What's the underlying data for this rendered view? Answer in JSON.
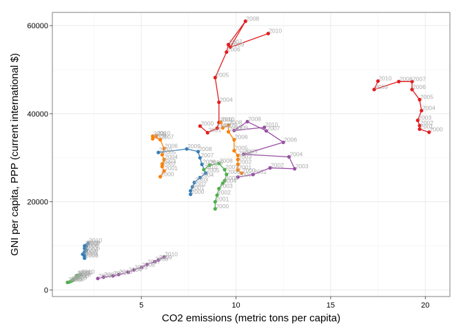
{
  "chart_data": {
    "type": "line",
    "xlabel": "CO2 emissions (metric tons per capita)",
    "ylabel": "GNI per capita, PPP (current international $)",
    "xlim": [
      0.3,
      21.3
    ],
    "ylim": [
      -1500,
      63000
    ],
    "xticks": [
      5,
      10,
      15,
      20
    ],
    "yticks": [
      0,
      20000,
      40000,
      60000
    ],
    "xtick_labels": [
      "5",
      "10",
      "15",
      "20"
    ],
    "ytick_labels": [
      "0",
      "20000",
      "40000",
      "60000"
    ],
    "grid": true,
    "legend": "none",
    "series": [
      {
        "color": "#e41a1c",
        "points": [
          {
            "year": "2000",
            "x": 20.2,
            "y": 35800
          },
          {
            "year": "2001",
            "x": 19.7,
            "y": 36500
          },
          {
            "year": "2002",
            "x": 19.7,
            "y": 37300
          },
          {
            "year": "2003",
            "x": 19.6,
            "y": 38500
          },
          {
            "year": "2004",
            "x": 19.8,
            "y": 40700
          },
          {
            "year": "2005",
            "x": 19.7,
            "y": 43200
          },
          {
            "year": "2006",
            "x": 19.3,
            "y": 45500
          },
          {
            "year": "2007",
            "x": 19.3,
            "y": 47300
          },
          {
            "year": "2008",
            "x": 18.6,
            "y": 47300
          },
          {
            "year": "2009",
            "x": 17.3,
            "y": 45500
          },
          {
            "year": "2010",
            "x": 17.5,
            "y": 47400
          }
        ]
      },
      {
        "color": "#e41a1c",
        "points": [
          {
            "year": "2000",
            "x": 8.1,
            "y": 37200
          },
          {
            "year": "2001",
            "x": 8.5,
            "y": 35700
          },
          {
            "year": "2002",
            "x": 9.0,
            "y": 36700
          },
          {
            "year": "2003",
            "x": 9.1,
            "y": 38000
          },
          {
            "year": "2004",
            "x": 9.1,
            "y": 42600
          },
          {
            "year": "2005",
            "x": 8.9,
            "y": 48200
          },
          {
            "year": "2006",
            "x": 9.5,
            "y": 54000
          },
          {
            "year": "2007",
            "x": 9.6,
            "y": 55700
          },
          {
            "year": "2008",
            "x": 10.5,
            "y": 61000
          },
          {
            "year": "2009",
            "x": 9.7,
            "y": 55100
          },
          {
            "year": "2010",
            "x": 11.7,
            "y": 58200
          }
        ]
      },
      {
        "color": "#984ea3",
        "points": [
          {
            "year": "2000",
            "x": 10.1,
            "y": 25600
          },
          {
            "year": "2001",
            "x": 10.9,
            "y": 26200
          },
          {
            "year": "2002",
            "x": 11.8,
            "y": 27700
          },
          {
            "year": "2003",
            "x": 13.1,
            "y": 27500
          },
          {
            "year": "2004",
            "x": 12.8,
            "y": 30200
          },
          {
            "year": "2005",
            "x": 10.4,
            "y": 30800
          },
          {
            "year": "2006",
            "x": 12.5,
            "y": 33500
          },
          {
            "year": "2007",
            "x": 11.6,
            "y": 36100
          },
          {
            "year": "2008",
            "x": 10.6,
            "y": 38200
          },
          {
            "year": "2009",
            "x": 9.9,
            "y": 36200
          },
          {
            "year": "2010",
            "x": 11.5,
            "y": 36900
          }
        ]
      },
      {
        "color": "#ff7f00",
        "points": [
          {
            "year": "2000",
            "x": 6.0,
            "y": 25700
          },
          {
            "year": "2001",
            "x": 6.2,
            "y": 27000
          },
          {
            "year": "2002",
            "x": 6.1,
            "y": 28000
          },
          {
            "year": "2003",
            "x": 6.1,
            "y": 28600
          },
          {
            "year": "2004",
            "x": 6.2,
            "y": 29600
          },
          {
            "year": "2005",
            "x": 6.1,
            "y": 30700
          },
          {
            "year": "2006",
            "x": 6.2,
            "y": 32100
          },
          {
            "year": "2007",
            "x": 6.0,
            "y": 34100
          },
          {
            "year": "2008",
            "x": 5.6,
            "y": 34900
          },
          {
            "year": "2009",
            "x": 5.6,
            "y": 34300
          },
          {
            "year": "2010",
            "x": 5.8,
            "y": 35000
          }
        ]
      },
      {
        "color": "#ff7f00",
        "points": [
          {
            "year": "2000",
            "x": 10.3,
            "y": 26500
          },
          {
            "year": "2001",
            "x": 10.1,
            "y": 27200
          },
          {
            "year": "2002",
            "x": 10.1,
            "y": 28500
          },
          {
            "year": "2003",
            "x": 10.1,
            "y": 29600
          },
          {
            "year": "2004",
            "x": 10.1,
            "y": 30500
          },
          {
            "year": "2005",
            "x": 9.9,
            "y": 31600
          },
          {
            "year": "2006",
            "x": 9.9,
            "y": 34100
          },
          {
            "year": "2007",
            "x": 9.6,
            "y": 35900
          },
          {
            "year": "2008",
            "x": 9.6,
            "y": 37400
          },
          {
            "year": "2009",
            "x": 9.3,
            "y": 36800
          },
          {
            "year": "2010",
            "x": 9.2,
            "y": 38100
          }
        ]
      },
      {
        "color": "#377eb8",
        "points": [
          {
            "year": "2000",
            "x": 7.6,
            "y": 21700
          },
          {
            "year": "2001",
            "x": 7.6,
            "y": 22500
          },
          {
            "year": "2002",
            "x": 7.7,
            "y": 23400
          },
          {
            "year": "2003",
            "x": 7.8,
            "y": 24400
          },
          {
            "year": "2004",
            "x": 8.1,
            "y": 25500
          },
          {
            "year": "2005",
            "x": 8.4,
            "y": 26500
          },
          {
            "year": "2006",
            "x": 8.2,
            "y": 28500
          },
          {
            "year": "2007",
            "x": 8.1,
            "y": 30000
          },
          {
            "year": "2008",
            "x": 8.0,
            "y": 31400
          },
          {
            "year": "2009",
            "x": 7.4,
            "y": 32000
          },
          {
            "year": "2010",
            "x": 5.9,
            "y": 31200
          }
        ]
      },
      {
        "color": "#4daf4a",
        "points": [
          {
            "year": "2000",
            "x": 8.9,
            "y": 18400
          },
          {
            "year": "2001",
            "x": 8.9,
            "y": 20000
          },
          {
            "year": "2002",
            "x": 9.0,
            "y": 21500
          },
          {
            "year": "2003",
            "x": 9.1,
            "y": 23000
          },
          {
            "year": "2004",
            "x": 9.3,
            "y": 24200
          },
          {
            "year": "2005",
            "x": 9.4,
            "y": 24800
          },
          {
            "year": "2006",
            "x": 9.5,
            "y": 26200
          },
          {
            "year": "2007",
            "x": 9.4,
            "y": 27300
          },
          {
            "year": "2008",
            "x": 9.1,
            "y": 28700
          },
          {
            "year": "2009",
            "x": 8.6,
            "y": 28300
          },
          {
            "year": "2010",
            "x": 8.3,
            "y": 27300
          }
        ]
      },
      {
        "color": "#377eb8",
        "points": [
          {
            "year": "2000",
            "x": 2.0,
            "y": 7200
          },
          {
            "year": "2001",
            "x": 2.0,
            "y": 7500
          },
          {
            "year": "2002",
            "x": 2.0,
            "y": 7800
          },
          {
            "year": "2003",
            "x": 1.9,
            "y": 8100
          },
          {
            "year": "2004",
            "x": 2.0,
            "y": 8600
          },
          {
            "year": "2005",
            "x": 2.1,
            "y": 9000
          },
          {
            "year": "2006",
            "x": 2.0,
            "y": 9400
          },
          {
            "year": "2007",
            "x": 2.1,
            "y": 9900
          },
          {
            "year": "2008",
            "x": 2.1,
            "y": 10200
          },
          {
            "year": "2009",
            "x": 2.0,
            "y": 10000
          },
          {
            "year": "2010",
            "x": 2.2,
            "y": 10600
          }
        ]
      },
      {
        "color": "#984ea3",
        "points": [
          {
            "year": "2000",
            "x": 2.7,
            "y": 2600
          },
          {
            "year": "2001",
            "x": 3.0,
            "y": 2900
          },
          {
            "year": "2002",
            "x": 3.5,
            "y": 3200
          },
          {
            "year": "2003",
            "x": 3.8,
            "y": 3500
          },
          {
            "year": "2004",
            "x": 4.3,
            "y": 4000
          },
          {
            "year": "2005",
            "x": 4.6,
            "y": 4500
          },
          {
            "year": "2006",
            "x": 5.0,
            "y": 5100
          },
          {
            "year": "2007",
            "x": 5.3,
            "y": 5800
          },
          {
            "year": "2008",
            "x": 5.7,
            "y": 6400
          },
          {
            "year": "2009",
            "x": 5.9,
            "y": 6800
          },
          {
            "year": "2010",
            "x": 6.2,
            "y": 7500
          }
        ]
      },
      {
        "color": "#4daf4a",
        "points": [
          {
            "year": "2000",
            "x": 1.1,
            "y": 1700
          },
          {
            "year": "2001",
            "x": 1.2,
            "y": 1800
          },
          {
            "year": "2002",
            "x": 1.3,
            "y": 2000
          },
          {
            "year": "2003",
            "x": 1.4,
            "y": 2200
          },
          {
            "year": "2004",
            "x": 1.4,
            "y": 2400
          },
          {
            "year": "2005",
            "x": 1.5,
            "y": 2600
          },
          {
            "year": "2006",
            "x": 1.6,
            "y": 2900
          },
          {
            "year": "2007",
            "x": 1.6,
            "y": 3100
          },
          {
            "year": "2008",
            "x": 1.6,
            "y": 3300
          },
          {
            "year": "2009",
            "x": 1.7,
            "y": 3300
          },
          {
            "year": "2010",
            "x": 1.8,
            "y": 3500
          }
        ]
      }
    ]
  }
}
